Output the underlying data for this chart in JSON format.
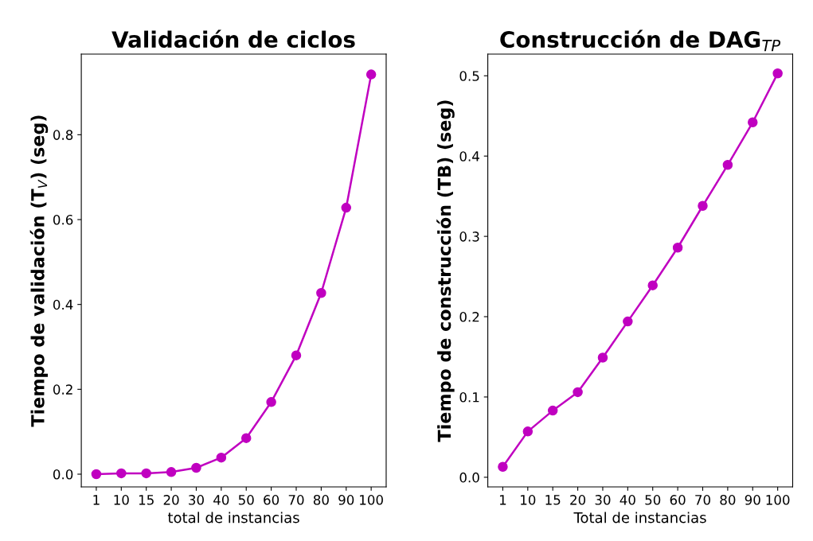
{
  "chart_data": [
    {
      "type": "line",
      "title": "Validación de ciclos",
      "xlabel": "total de instancias",
      "ylabel": "Tiempo de validación (T$_{V}$) (seg)",
      "categories": [
        "1",
        "10",
        "15",
        "20",
        "30",
        "40",
        "50",
        "60",
        "70",
        "80",
        "90",
        "100"
      ],
      "series": [
        {
          "color": "#c000c0",
          "values": [
            0.0,
            0.002,
            0.002,
            0.005,
            0.015,
            0.039,
            0.085,
            0.17,
            0.28,
            0.427,
            0.628,
            0.942
          ]
        }
      ],
      "ylim": [
        -0.03,
        0.99
      ],
      "yticks": [
        {
          "value": 0,
          "label": "0.0"
        },
        {
          "value": 0.2,
          "label": "0.2"
        },
        {
          "value": 0.4,
          "label": "0.4"
        },
        {
          "value": 0.6,
          "label": "0.6"
        },
        {
          "value": 0.8,
          "label": "0.8"
        }
      ],
      "marker": "circle",
      "grid": false
    },
    {
      "type": "line",
      "title": "Construcción de DAG$_{TP}$",
      "xlabel": "Total de instancias",
      "ylabel": "Tiempo de construcción (TB) (seg)",
      "categories": [
        "1",
        "10",
        "15",
        "20",
        "30",
        "40",
        "50",
        "60",
        "70",
        "80",
        "90",
        "100"
      ],
      "series": [
        {
          "color": "#c000c0",
          "values": [
            0.013,
            0.057,
            0.083,
            0.106,
            0.149,
            0.194,
            0.239,
            0.286,
            0.338,
            0.389,
            0.442,
            0.503
          ]
        }
      ],
      "ylim": [
        -0.012,
        0.527
      ],
      "yticks": [
        {
          "value": 0,
          "label": "0.0"
        },
        {
          "value": 0.1,
          "label": "0.1"
        },
        {
          "value": 0.2,
          "label": "0.2"
        },
        {
          "value": 0.3,
          "label": "0.3"
        },
        {
          "value": 0.4,
          "label": "0.4"
        },
        {
          "value": 0.5,
          "label": "0.5"
        }
      ],
      "marker": "circle",
      "grid": false
    }
  ]
}
